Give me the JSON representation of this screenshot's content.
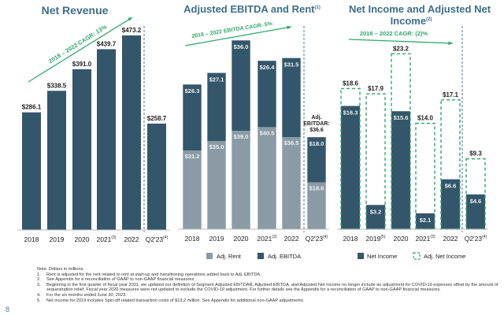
{
  "colors": {
    "dark_bar": "#34566a",
    "rent_bar": "#8a9ba6",
    "green": "#2ea86a",
    "title": "#3d6e8a",
    "divider": "#4a78a8"
  },
  "chart_data": [
    {
      "type": "bar",
      "title": "Net Revenue",
      "categories": [
        "2018",
        "2019",
        "2020",
        "2021",
        "2022",
        "Q2'23"
      ],
      "category_notes": [
        "",
        "",
        "",
        "(3)",
        "",
        "(4)"
      ],
      "values": [
        286.1,
        338.5,
        391.0,
        439.7,
        473.2,
        258.7
      ],
      "labels": [
        "$286.1",
        "$338.5",
        "$391.0",
        "$439.7",
        "$473.2",
        "$258.7"
      ],
      "annotation": "2018 – 2022 CAGR: 13%",
      "grid": false
    },
    {
      "type": "bar",
      "stacked": true,
      "title": "Adjusted EBITDA and Rent",
      "title_note": "(1)",
      "categories": [
        "2018",
        "2019",
        "2020",
        "2021",
        "2022",
        "Q2'23"
      ],
      "category_notes": [
        "",
        "",
        "",
        "(3)",
        "",
        "(4)"
      ],
      "series": [
        {
          "name": "Adj. Rent",
          "values": [
            31.2,
            35.0,
            39.0,
            40.5,
            36.5,
            18.6
          ],
          "labels": [
            "$31.2",
            "$35.0",
            "$39.0",
            "$40.5",
            "$36.5",
            "$18.6"
          ]
        },
        {
          "name": "Adj. EBITDA",
          "values": [
            26.3,
            27.1,
            36.0,
            26.4,
            31.5,
            18.0
          ],
          "labels": [
            "$26.3",
            "$27.1",
            "$36.0",
            "$26.4",
            "$31.5",
            "$18.0"
          ]
        }
      ],
      "annotation": "2018 – 2022 EBITDA CAGR: 5%",
      "callout": [
        "Adj.",
        "EBITDAR:",
        "$36.6"
      ],
      "legend": "bottom",
      "grid": false
    },
    {
      "type": "bar",
      "title": "Net Income and Adjusted Net Income",
      "title_lines": [
        "Net Income and Adjusted Net",
        "Income"
      ],
      "title_note": "(2)",
      "categories": [
        "2018",
        "2019",
        "2020",
        "2021",
        "2022",
        "Q2'23"
      ],
      "category_notes": [
        "",
        "(5)",
        "",
        "(3)",
        "",
        "(4)"
      ],
      "series": [
        {
          "name": "Net Income",
          "values": [
            16.3,
            3.2,
            15.6,
            2.1,
            6.6,
            4.6
          ],
          "labels": [
            "$16.3",
            "$3.2",
            "$15.6",
            "$2.1",
            "$6.6",
            "$4.6"
          ]
        },
        {
          "name": "Adj. Net Income",
          "values": [
            18.6,
            17.9,
            23.2,
            14.0,
            17.1,
            9.3
          ],
          "labels": [
            "$18.6",
            "$17.9",
            "$23.2",
            "$14.0",
            "$17.1",
            "$9.3"
          ]
        }
      ],
      "annotation": "2018 – 2022 CAGR: (2)%",
      "legend": "bottom",
      "grid": false
    }
  ],
  "footnotes": {
    "intro": "Note: Dollars in millions.",
    "items": [
      {
        "num": "1.",
        "text": "Rent is adjusted for the rent related to rent at start-up and transitioning operations added back to Adj. EBITDA."
      },
      {
        "num": "2.",
        "text": "See Appendix for a reconciliation of GAAP to non-GAAP financial measures."
      },
      {
        "num": "3.",
        "text": "Beginning in the first quarter of fiscal year 2021, we updated our definition of Segment Adjusted EBITDAR. Adjusted EBITDA, and Adjusted Net Income no longer include an adjustment for COVID-19 expenses offset by the amount of sequestration relief.  Fiscal year 2020 measures were not updated to exclude the COVID-19 adjustment. For further details see the Appendix for a reconciliation of GAAP to non-GAAP financial measures."
      },
      {
        "num": "4.",
        "text": "For the six months ended June 30, 2023."
      },
      {
        "num": "5.",
        "text": "Net income for 2019 includes Spin-off related transaction costs of $13.2 million. See Appendix for additional non-GAAP adjustments."
      }
    ]
  },
  "page_number": "8"
}
